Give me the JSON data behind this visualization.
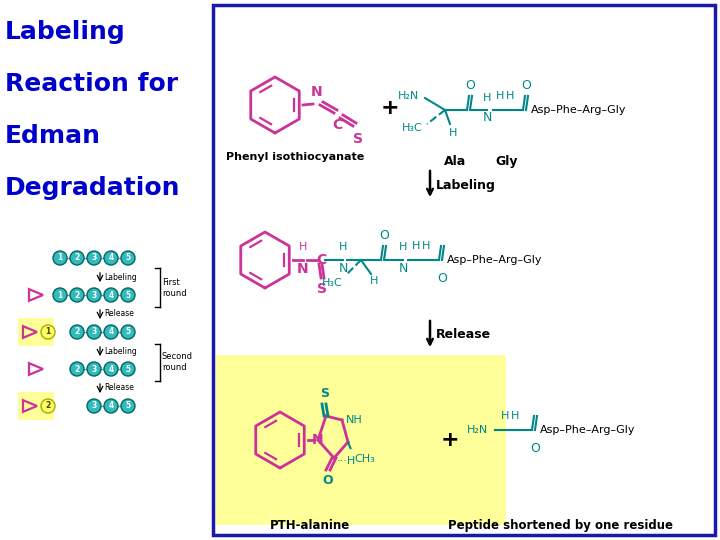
{
  "title_lines": [
    "Labeling",
    "Reaction for",
    "Edman",
    "Degradation"
  ],
  "title_color": "#0000CC",
  "title_fontsize": 18,
  "title_fontweight": "bold",
  "bg_color": "#FFFFFF",
  "border_color": "#1a1aaa",
  "yellow_bg": "#FFFF99",
  "pink_color": "#CC3399",
  "teal_color": "#008888",
  "black": "#000000",
  "label_labeling": "Labeling",
  "label_release": "Release",
  "label_pthalanine": "PTH-alanine",
  "label_peptide_short": "Peptide shortened by one residue",
  "label_phenyl": "Phenyl isothiocyanate",
  "label_ala": "Ala",
  "label_gly": "Gly",
  "label_asp_1": "Asp–Phe–Arg–Gly",
  "label_asp_2": "Asp–Phe–Arg–Gly",
  "label_asp_3": "Asp–Phe–Arg–Gly",
  "first_round": "First\nround",
  "second_round": "Second\nround"
}
